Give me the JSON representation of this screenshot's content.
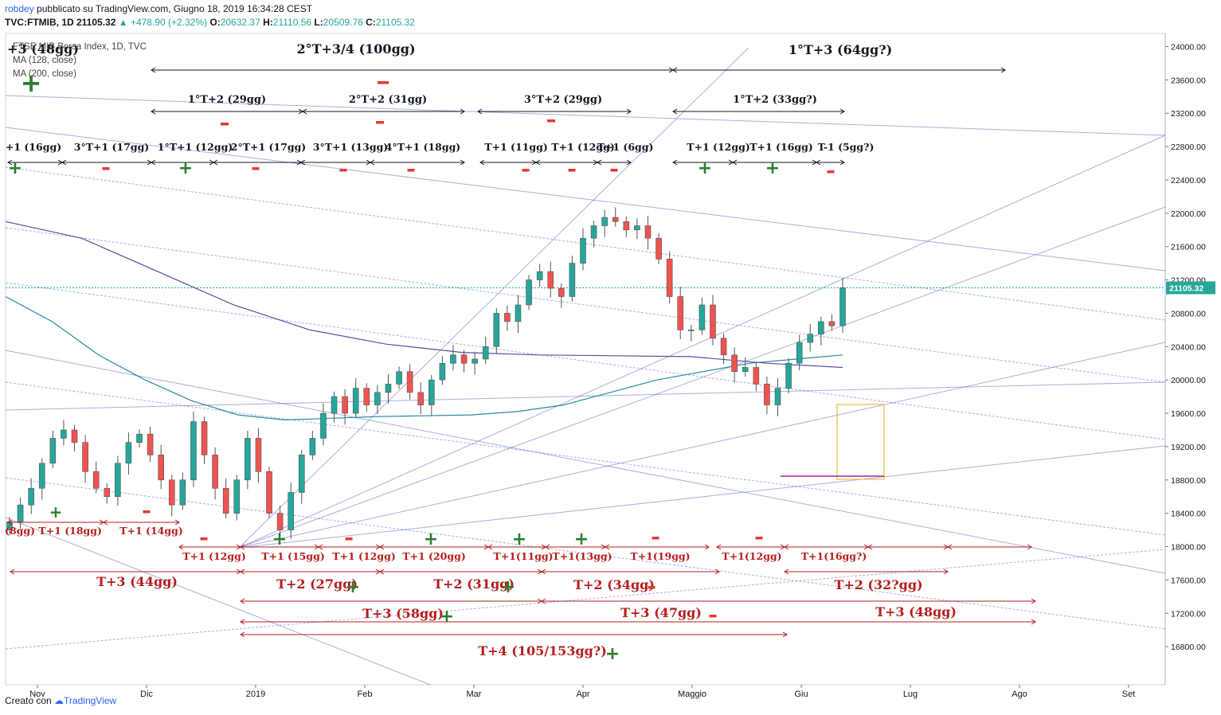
{
  "header": {
    "author": "robdey",
    "published_text": "pubblicato su TradingView.com, Giugno 18, 2019 16:34:28 CEST",
    "symbol_line": "TVC:FTMIB, 1D  21105.32",
    "change": "▲ +478.90 (+2.32%)",
    "o_label": "O:",
    "o_value": "20632.37",
    "h_label": "H:",
    "h_value": "21110.56",
    "l_label": "L:",
    "l_value": "20509.76",
    "c_label": "C:",
    "c_value": "21105.32"
  },
  "legend": {
    "series_title": "FTSE MIB Borsa Index, 1D, TVC",
    "ma1": "MA (128, close)",
    "ma2": "MA (200, close)"
  },
  "footer": {
    "created_with": "Creato con",
    "brand": "TradingView"
  },
  "colors": {
    "up": "#26a69a",
    "down": "#ef5350",
    "ma128": "#2a8a9e",
    "ma200": "#5b4ea3",
    "annot_black": "#131722",
    "annot_red": "#b71c1c",
    "trend": "#3f51b5",
    "box": "#f5a623",
    "purple_line": "#9c27b0"
  },
  "chart_data": {
    "type": "candlestick",
    "title": "FTSE MIB Borsa Index, 1D, TVC",
    "last_price": "21105.32",
    "ylim": [
      16400,
      24100
    ],
    "y_ticks": [
      "16800.00",
      "17200.00",
      "17600.00",
      "18000.00",
      "18400.00",
      "18800.00",
      "19200.00",
      "19600.00",
      "20000.00",
      "20400.00",
      "20800.00",
      "21200.00",
      "21600.00",
      "22000.00",
      "22400.00",
      "22800.00",
      "23200.00",
      "23600.00",
      "24000.00"
    ],
    "x_ticks": [
      "Nov",
      "Dic",
      "2019",
      "Feb",
      "Mar",
      "Apr",
      "Maggio",
      "Giu",
      "Lug",
      "Ago",
      "Set"
    ],
    "close_path": [
      18300,
      18500,
      18700,
      19000,
      19300,
      19400,
      19250,
      18900,
      18700,
      18600,
      19000,
      19250,
      19350,
      19100,
      18800,
      18500,
      18800,
      19500,
      19100,
      18700,
      18400,
      18800,
      19300,
      18900,
      18400,
      18200,
      18650,
      19100,
      19300,
      19600,
      19800,
      19600,
      19900,
      19700,
      19850,
      19950,
      20100,
      19850,
      19700,
      20000,
      20200,
      20300,
      20200,
      20250,
      20400,
      20800,
      20700,
      20900,
      21200,
      21300,
      21100,
      21000,
      21400,
      21700,
      21850,
      21950,
      21900,
      21800,
      21850,
      21700,
      21450,
      21000,
      20600,
      20600,
      20900,
      20500,
      20300,
      20100,
      20150,
      19950,
      19700,
      19900,
      20200,
      20450,
      20550,
      20700,
      20650,
      21105
    ],
    "ma128_path": [
      21000,
      20700,
      20300,
      20000,
      19750,
      19580,
      19520,
      19540,
      19560,
      19570,
      19580,
      19620,
      19700,
      19850,
      20000,
      20100,
      20200,
      20250,
      20300
    ],
    "ma200_path": [
      21900,
      21700,
      21300,
      20900,
      20600,
      20430,
      20330,
      20300,
      20290,
      20280,
      20200,
      20150
    ],
    "annotations": {
      "top_titles": [
        "+3 (48gg)",
        "2°T+3/4 (100gg)",
        "1°T+3 (64gg?)"
      ],
      "row_t2": [
        "1°T+2 (29gg)",
        "2°T+2 (31gg)",
        "3°T+2 (29gg)",
        "1°T+2 (33gg?)"
      ],
      "row_t1": [
        "+1 (16gg)",
        "3°T+1 (17gg)",
        "1°T+1 (12gg)",
        "2°T+1 (17gg)",
        "3°T+1 (13gg)",
        "4°T+1 (18gg)",
        "T+1 (11gg)",
        "T+1 (12gg)",
        "T+1 (6gg)",
        "T+1 (12gg)",
        "T+1 (16gg)",
        "T-1 (5gg?)"
      ],
      "low_t1a": [
        "(8gg) T+1 (18gg)",
        "T+1 (14gg)"
      ],
      "low_t1b": [
        "T+1 (12gg)",
        "T+1 (15gg)",
        "T+1 (12gg)",
        "T+1 (20gg)",
        "T+1(11gg)",
        "T+1(13gg)",
        "T+1(19gg)",
        "T+1(12gg)",
        "T+1(16gg?)"
      ],
      "low_t2": [
        "T+3 (44gg)",
        "T+2 (27gg)",
        "T+2 (31gg)",
        "T+2 (34gg)",
        "T+2 (32?gg)"
      ],
      "low_t3": [
        "T+3 (58gg)",
        "T+3 (47gg)",
        "T+3 (48gg)"
      ],
      "low_t4": [
        "T+4 (105/153gg?)"
      ]
    }
  }
}
